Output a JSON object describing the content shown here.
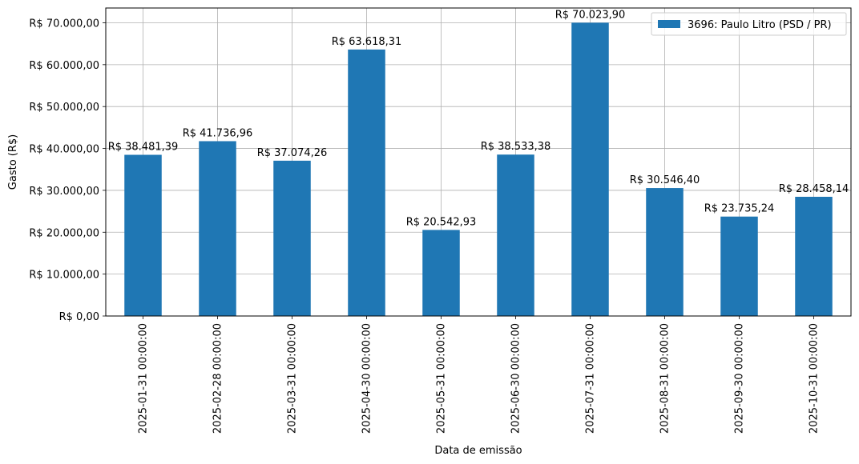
{
  "chart_data": {
    "type": "bar",
    "categories": [
      "2025-01-31 00:00:00",
      "2025-02-28 00:00:00",
      "2025-03-31 00:00:00",
      "2025-04-30 00:00:00",
      "2025-05-31 00:00:00",
      "2025-06-30 00:00:00",
      "2025-07-31 00:00:00",
      "2025-08-31 00:00:00",
      "2025-09-30 00:00:00",
      "2025-10-31 00:00:00"
    ],
    "series": [
      {
        "name": "3696: Paulo Litro (PSD / PR)",
        "color": "#1f77b4",
        "values": [
          38481.39,
          41736.96,
          37074.26,
          63618.31,
          20542.93,
          38533.38,
          70023.9,
          30546.4,
          23735.24,
          28458.14
        ],
        "labels": [
          "R$ 38.481,39",
          "R$ 41.736,96",
          "R$ 37.074,26",
          "R$ 63.618,31",
          "R$ 20.542,93",
          "R$ 38.533,38",
          "R$ 70.023,90",
          "R$ 30.546,40",
          "R$ 23.735,24",
          "R$ 28.458,14"
        ]
      }
    ],
    "xlabel": "Data de emissão",
    "ylabel": "Gasto (R$)",
    "ylim": [
      0,
      73530
    ],
    "yticks": [
      0,
      10000,
      20000,
      30000,
      40000,
      50000,
      60000,
      70000
    ],
    "ytick_labels": [
      "R$ 0,00",
      "R$ 10.000,00",
      "R$ 20.000,00",
      "R$ 30.000,00",
      "R$ 40.000,00",
      "R$ 50.000,00",
      "R$ 60.000,00",
      "R$ 70.000,00"
    ],
    "grid": true,
    "legend_position": "top-right"
  }
}
